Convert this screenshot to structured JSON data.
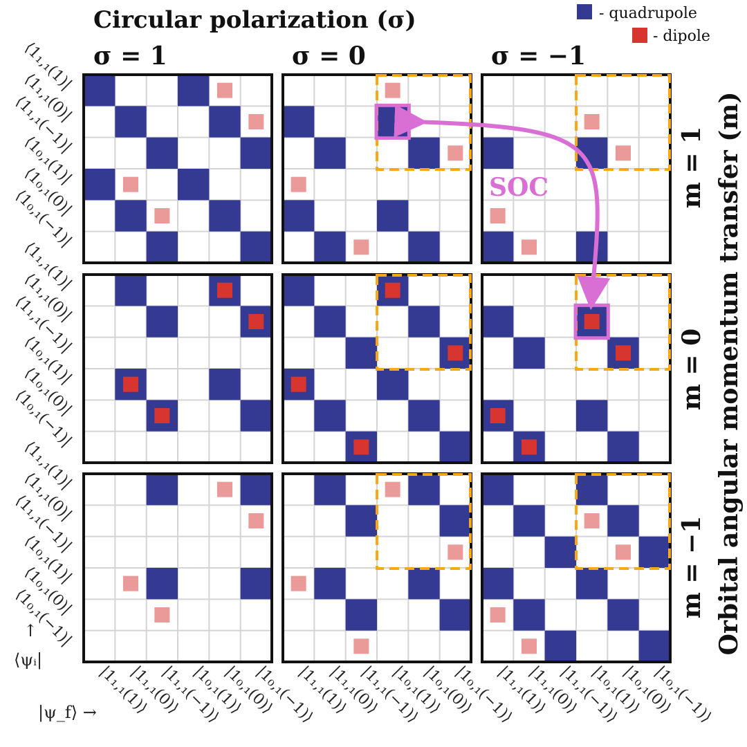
{
  "title": "Circular polarization (σ)",
  "row_axis_title": "Orbital angular momentum transfer (m)",
  "columns": [
    {
      "label": "σ = 1"
    },
    {
      "label": "σ = 0"
    },
    {
      "label": "σ = −1"
    }
  ],
  "rows": [
    {
      "label": "m = 1"
    },
    {
      "label": "m = 0"
    },
    {
      "label": "m = −1"
    }
  ],
  "legend": {
    "quadrupole": {
      "label": "- quadrupole",
      "color": "#343a92"
    },
    "dipole": {
      "label": "- dipole",
      "color": "#d73530"
    }
  },
  "faded_dipole_color": "#ea9a98",
  "soc": {
    "label": "SOC",
    "color": "#d96fd4",
    "from": {
      "panel": [
        0,
        1
      ],
      "cell": [
        1,
        3
      ]
    },
    "to": {
      "panel": [
        1,
        2
      ],
      "cell": [
        1,
        3
      ]
    }
  },
  "highlight_box_color": "#f7a815",
  "states": [
    "⟨1₁,₁(1)|",
    "⟨1₁,₁(0)|",
    "⟨1₁,₁(−1)|",
    "⟨1₀,₁(1)|",
    "⟨1₀,₁(0)|",
    "⟨1₀,₁(−1)|"
  ],
  "ket_states": [
    "|1₁,₁(1)⟩",
    "|1₁,₁(0)⟩",
    "|1₁,₁(−1)⟩",
    "|1₀,₁(1)⟩",
    "|1₀,₁(0)⟩",
    "|1₀,₁(−1)⟩"
  ],
  "psi_i_label": "⟨ψᵢ|",
  "psi_f_label": "|ψ_f⟩ →",
  "up_arrow": "↑",
  "chart_data": {
    "type": "heatmap",
    "description_rows": "initial state ⟨ψi|, 6 states",
    "description_cols": "final state |ψf⟩, 6 states",
    "panels": [
      {
        "row": 0,
        "col": 0,
        "m": 1,
        "sigma": 1,
        "highlight": false,
        "quadrupole": [
          [
            0,
            0
          ],
          [
            0,
            3
          ],
          [
            1,
            1
          ],
          [
            1,
            4
          ],
          [
            2,
            2
          ],
          [
            2,
            5
          ],
          [
            3,
            0
          ],
          [
            3,
            3
          ],
          [
            4,
            1
          ],
          [
            4,
            4
          ],
          [
            5,
            2
          ],
          [
            5,
            5
          ]
        ],
        "dipole_faded": [
          [
            0,
            4
          ],
          [
            1,
            5
          ],
          [
            3,
            1
          ],
          [
            4,
            2
          ]
        ],
        "dipole": []
      },
      {
        "row": 0,
        "col": 1,
        "m": 1,
        "sigma": 0,
        "highlight": true,
        "quadrupole": [
          [
            1,
            0
          ],
          [
            1,
            3
          ],
          [
            2,
            1
          ],
          [
            2,
            4
          ],
          [
            4,
            0
          ],
          [
            4,
            3
          ],
          [
            5,
            1
          ],
          [
            5,
            4
          ]
        ],
        "dipole_faded": [
          [
            0,
            3
          ],
          [
            2,
            5
          ],
          [
            3,
            0
          ],
          [
            5,
            2
          ]
        ],
        "dipole": []
      },
      {
        "row": 0,
        "col": 2,
        "m": 1,
        "sigma": -1,
        "highlight": true,
        "quadrupole": [
          [
            2,
            0
          ],
          [
            2,
            3
          ],
          [
            5,
            0
          ],
          [
            5,
            3
          ]
        ],
        "dipole_faded": [
          [
            1,
            3
          ],
          [
            2,
            4
          ],
          [
            4,
            0
          ],
          [
            5,
            1
          ]
        ],
        "dipole": []
      },
      {
        "row": 1,
        "col": 0,
        "m": 0,
        "sigma": 1,
        "highlight": false,
        "quadrupole": [
          [
            0,
            1
          ],
          [
            0,
            4
          ],
          [
            1,
            2
          ],
          [
            1,
            5
          ],
          [
            3,
            1
          ],
          [
            3,
            4
          ],
          [
            4,
            2
          ],
          [
            4,
            5
          ]
        ],
        "dipole_faded": [],
        "dipole": [
          [
            0,
            4
          ],
          [
            1,
            5
          ],
          [
            3,
            1
          ],
          [
            4,
            2
          ]
        ]
      },
      {
        "row": 1,
        "col": 1,
        "m": 0,
        "sigma": 0,
        "highlight": true,
        "quadrupole": [
          [
            0,
            0
          ],
          [
            0,
            3
          ],
          [
            1,
            1
          ],
          [
            1,
            4
          ],
          [
            2,
            2
          ],
          [
            2,
            5
          ],
          [
            3,
            0
          ],
          [
            3,
            3
          ],
          [
            4,
            1
          ],
          [
            4,
            4
          ],
          [
            5,
            2
          ],
          [
            5,
            5
          ]
        ],
        "dipole_faded": [],
        "dipole": [
          [
            0,
            3
          ],
          [
            2,
            5
          ],
          [
            3,
            0
          ],
          [
            5,
            2
          ]
        ]
      },
      {
        "row": 1,
        "col": 2,
        "m": 0,
        "sigma": -1,
        "highlight": true,
        "quadrupole": [
          [
            1,
            0
          ],
          [
            1,
            3
          ],
          [
            2,
            1
          ],
          [
            2,
            4
          ],
          [
            4,
            0
          ],
          [
            4,
            3
          ],
          [
            5,
            1
          ],
          [
            5,
            4
          ]
        ],
        "dipole_faded": [],
        "dipole": [
          [
            1,
            3
          ],
          [
            2,
            4
          ],
          [
            4,
            0
          ],
          [
            5,
            1
          ]
        ]
      },
      {
        "row": 2,
        "col": 0,
        "m": -1,
        "sigma": 1,
        "highlight": false,
        "quadrupole": [
          [
            0,
            2
          ],
          [
            0,
            5
          ],
          [
            3,
            2
          ],
          [
            3,
            5
          ]
        ],
        "dipole_faded": [
          [
            0,
            4
          ],
          [
            1,
            5
          ],
          [
            3,
            1
          ],
          [
            4,
            2
          ]
        ],
        "dipole": []
      },
      {
        "row": 2,
        "col": 1,
        "m": -1,
        "sigma": 0,
        "highlight": true,
        "quadrupole": [
          [
            0,
            1
          ],
          [
            0,
            4
          ],
          [
            1,
            2
          ],
          [
            1,
            5
          ],
          [
            3,
            1
          ],
          [
            3,
            4
          ],
          [
            4,
            2
          ],
          [
            4,
            5
          ]
        ],
        "dipole_faded": [
          [
            0,
            3
          ],
          [
            2,
            5
          ],
          [
            3,
            0
          ],
          [
            5,
            2
          ]
        ],
        "dipole": []
      },
      {
        "row": 2,
        "col": 2,
        "m": -1,
        "sigma": -1,
        "highlight": true,
        "quadrupole": [
          [
            0,
            0
          ],
          [
            0,
            3
          ],
          [
            1,
            1
          ],
          [
            1,
            4
          ],
          [
            2,
            2
          ],
          [
            2,
            5
          ],
          [
            3,
            0
          ],
          [
            3,
            3
          ],
          [
            4,
            1
          ],
          [
            4,
            4
          ],
          [
            5,
            2
          ],
          [
            5,
            5
          ]
        ],
        "dipole_faded": [
          [
            1,
            3
          ],
          [
            2,
            4
          ],
          [
            4,
            0
          ],
          [
            5,
            1
          ]
        ],
        "dipole": []
      }
    ]
  }
}
